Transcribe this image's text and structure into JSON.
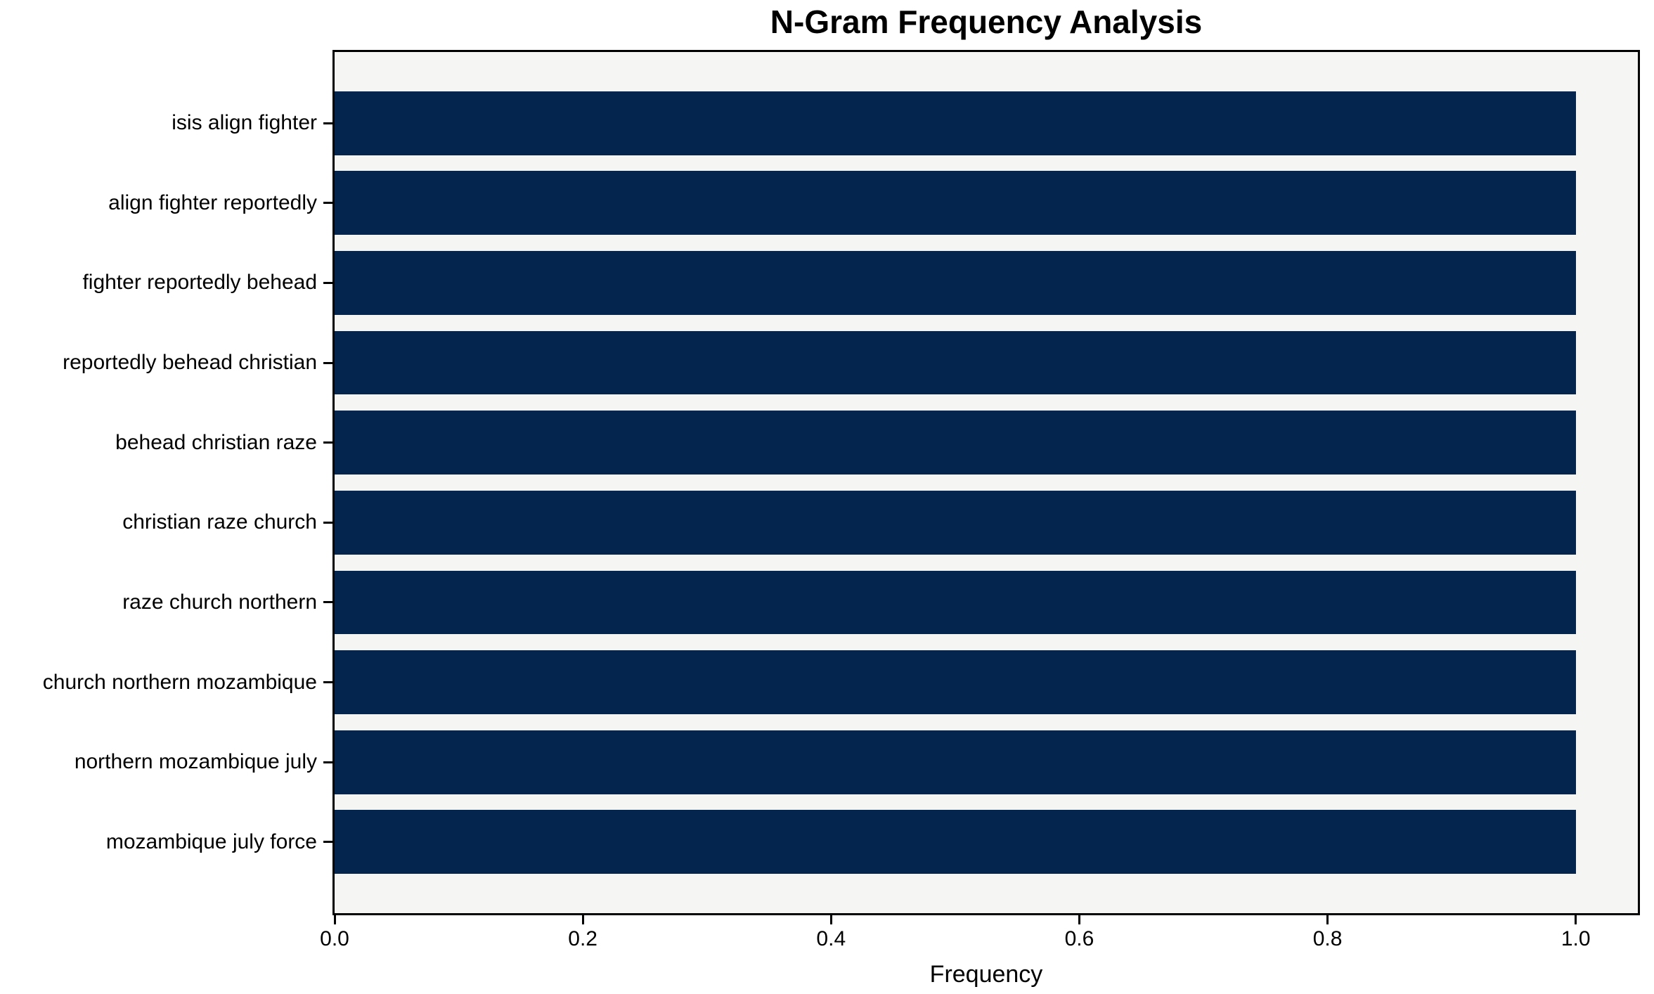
{
  "chart_data": {
    "type": "bar",
    "orientation": "horizontal",
    "title": "N-Gram Frequency Analysis",
    "xlabel": "Frequency",
    "ylabel": "",
    "categories": [
      "isis align fighter",
      "align fighter reportedly",
      "fighter reportedly behead",
      "reportedly behead christian",
      "behead christian raze",
      "christian raze church",
      "raze church northern",
      "church northern mozambique",
      "northern mozambique july",
      "mozambique july force"
    ],
    "values": [
      1.0,
      1.0,
      1.0,
      1.0,
      1.0,
      1.0,
      1.0,
      1.0,
      1.0,
      1.0
    ],
    "xlim": [
      0.0,
      1.05
    ],
    "xticks": [
      0.0,
      0.2,
      0.4,
      0.6,
      0.8,
      1.0
    ],
    "xtick_labels": [
      "0.0",
      "0.2",
      "0.4",
      "0.6",
      "0.8",
      "1.0"
    ],
    "bar_color": "#03254e",
    "plot_background": "#f5f5f4",
    "figure_background": "#ffffff",
    "spine_color": "#000000",
    "grid": false,
    "legend": null,
    "bar_relative_height": 0.8
  }
}
